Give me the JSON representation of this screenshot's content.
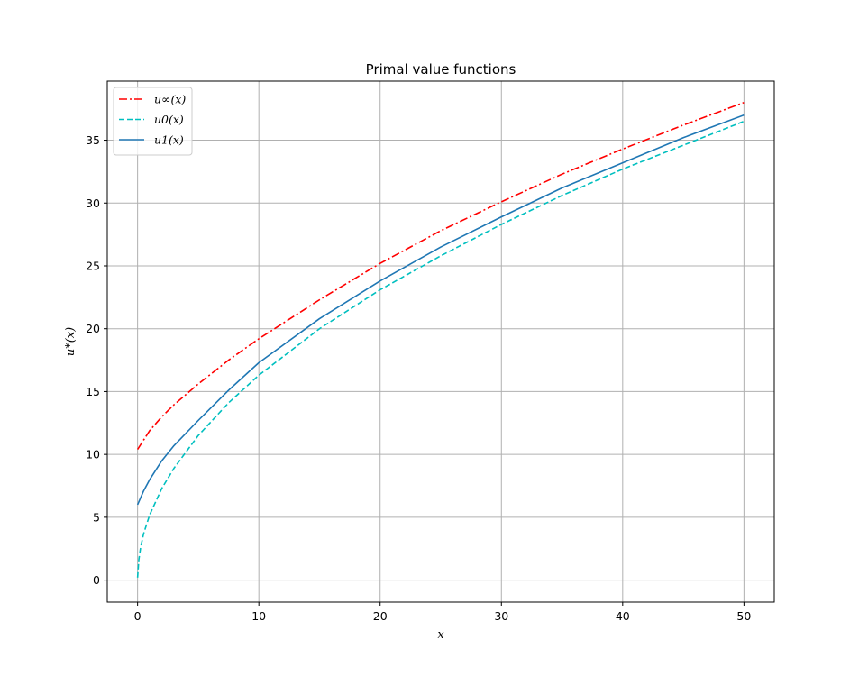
{
  "chart_data": {
    "type": "line",
    "title": "Primal value functions",
    "xlabel": "x",
    "ylabel": "u*(x)",
    "xlim": [
      -2.5,
      52.5
    ],
    "ylim": [
      -1.75,
      39.7
    ],
    "xticks": [
      0,
      10,
      20,
      30,
      40,
      50
    ],
    "yticks": [
      0,
      5,
      10,
      15,
      20,
      25,
      30,
      35
    ],
    "grid": true,
    "legend_position": "upper-left",
    "series": [
      {
        "name": "u∞(x)",
        "color": "#ff0000",
        "style": "dashdot",
        "x": [
          0,
          1,
          2,
          3,
          5,
          7.5,
          10,
          15,
          20,
          25,
          30,
          35,
          40,
          45,
          50
        ],
        "y": [
          10.4,
          11.9,
          13.0,
          13.95,
          15.6,
          17.5,
          19.2,
          22.3,
          25.2,
          27.8,
          30.1,
          32.3,
          34.3,
          36.2,
          38.0
        ]
      },
      {
        "name": "u0(x)",
        "color": "#00bfbf",
        "style": "dashed",
        "x": [
          0,
          0.1,
          0.25,
          0.5,
          1,
          2,
          3,
          5,
          7.5,
          10,
          15,
          20,
          25,
          30,
          35,
          40,
          45,
          50
        ],
        "y": [
          0.2,
          1.6,
          2.6,
          3.7,
          5.2,
          7.3,
          8.9,
          11.5,
          14.1,
          16.3,
          20.0,
          23.1,
          25.8,
          28.3,
          30.6,
          32.7,
          34.6,
          36.5
        ]
      },
      {
        "name": "u1(x)",
        "color": "#1f77b4",
        "style": "solid",
        "x": [
          0,
          0.5,
          1,
          2,
          3,
          5,
          7.5,
          10,
          15,
          20,
          25,
          30,
          35,
          40,
          45,
          50
        ],
        "y": [
          6.0,
          7.1,
          8.0,
          9.5,
          10.7,
          12.7,
          15.1,
          17.3,
          20.8,
          23.8,
          26.5,
          28.9,
          31.2,
          33.2,
          35.2,
          37.0
        ]
      }
    ]
  }
}
